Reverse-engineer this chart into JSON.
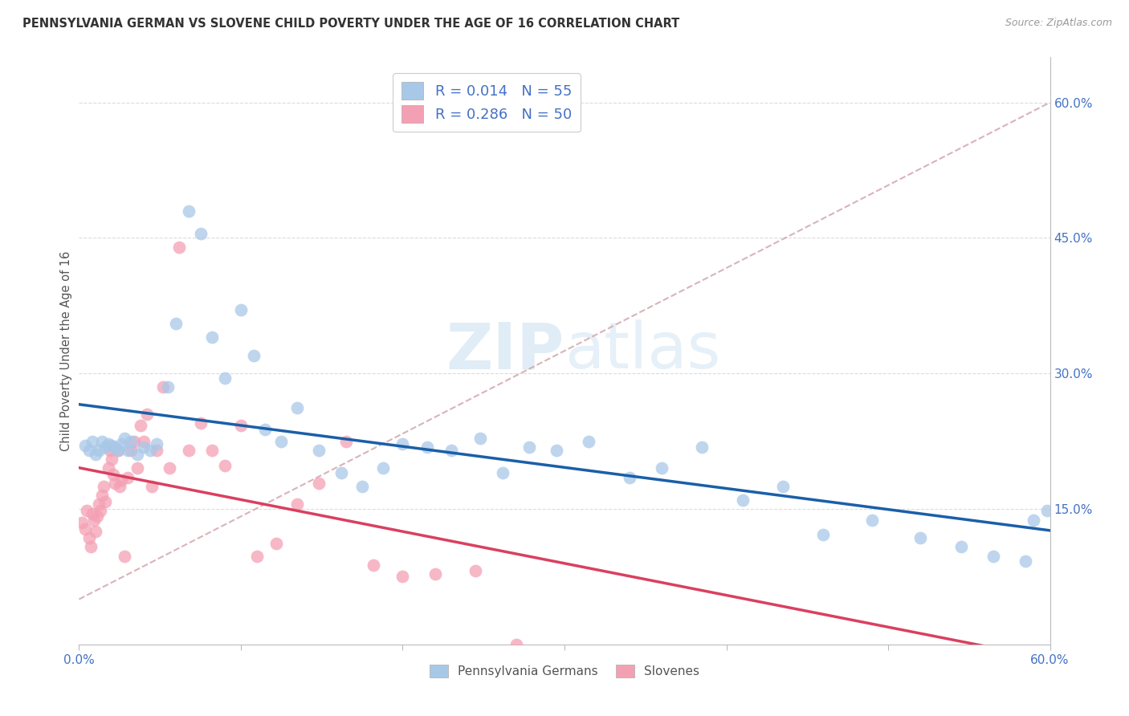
{
  "title": "PENNSYLVANIA GERMAN VS SLOVENE CHILD POVERTY UNDER THE AGE OF 16 CORRELATION CHART",
  "source": "Source: ZipAtlas.com",
  "ylabel": "Child Poverty Under the Age of 16",
  "legend_label1": "Pennsylvania Germans",
  "legend_label2": "Slovenes",
  "r1": "0.014",
  "n1": "55",
  "r2": "0.286",
  "n2": "50",
  "xlim": [
    0,
    0.6
  ],
  "ylim": [
    0,
    0.65
  ],
  "yticks": [
    0.15,
    0.3,
    0.45,
    0.6
  ],
  "color_blue": "#a8c8e8",
  "color_pink": "#f4a0b4",
  "color_trendline_blue": "#1a5fa8",
  "color_trendline_pink": "#d94060",
  "color_dashed": "#d0a0a8",
  "pa_german_x": [
    0.004,
    0.006,
    0.008,
    0.01,
    0.012,
    0.014,
    0.016,
    0.018,
    0.02,
    0.022,
    0.024,
    0.026,
    0.028,
    0.03,
    0.032,
    0.036,
    0.04,
    0.044,
    0.048,
    0.055,
    0.06,
    0.068,
    0.075,
    0.082,
    0.09,
    0.1,
    0.108,
    0.115,
    0.125,
    0.135,
    0.148,
    0.162,
    0.175,
    0.188,
    0.2,
    0.215,
    0.23,
    0.248,
    0.262,
    0.278,
    0.295,
    0.315,
    0.34,
    0.36,
    0.385,
    0.41,
    0.435,
    0.46,
    0.49,
    0.52,
    0.545,
    0.565,
    0.585,
    0.59,
    0.598
  ],
  "pa_german_y": [
    0.22,
    0.215,
    0.225,
    0.21,
    0.215,
    0.225,
    0.218,
    0.222,
    0.22,
    0.218,
    0.215,
    0.222,
    0.228,
    0.215,
    0.225,
    0.21,
    0.218,
    0.215,
    0.222,
    0.285,
    0.355,
    0.48,
    0.455,
    0.34,
    0.295,
    0.37,
    0.32,
    0.238,
    0.225,
    0.262,
    0.215,
    0.19,
    0.175,
    0.195,
    0.222,
    0.218,
    0.215,
    0.228,
    0.19,
    0.218,
    0.215,
    0.225,
    0.185,
    0.195,
    0.218,
    0.16,
    0.175,
    0.122,
    0.138,
    0.118,
    0.108,
    0.098,
    0.092,
    0.138,
    0.148
  ],
  "slovene_x": [
    0.002,
    0.004,
    0.005,
    0.006,
    0.007,
    0.008,
    0.009,
    0.01,
    0.011,
    0.012,
    0.013,
    0.014,
    0.015,
    0.016,
    0.018,
    0.019,
    0.02,
    0.021,
    0.022,
    0.024,
    0.025,
    0.026,
    0.028,
    0.03,
    0.032,
    0.034,
    0.036,
    0.038,
    0.04,
    0.042,
    0.045,
    0.048,
    0.052,
    0.056,
    0.062,
    0.068,
    0.075,
    0.082,
    0.09,
    0.1,
    0.11,
    0.122,
    0.135,
    0.148,
    0.165,
    0.182,
    0.2,
    0.22,
    0.245,
    0.27
  ],
  "slovene_y": [
    0.135,
    0.128,
    0.148,
    0.118,
    0.108,
    0.145,
    0.138,
    0.125,
    0.142,
    0.155,
    0.148,
    0.165,
    0.175,
    0.158,
    0.195,
    0.215,
    0.205,
    0.188,
    0.178,
    0.215,
    0.175,
    0.182,
    0.098,
    0.185,
    0.215,
    0.225,
    0.195,
    0.242,
    0.225,
    0.255,
    0.175,
    0.215,
    0.285,
    0.195,
    0.44,
    0.215,
    0.245,
    0.215,
    0.198,
    0.242,
    0.098,
    0.112,
    0.155,
    0.178,
    0.225,
    0.088,
    0.075,
    0.078,
    0.082,
    0.0
  ]
}
